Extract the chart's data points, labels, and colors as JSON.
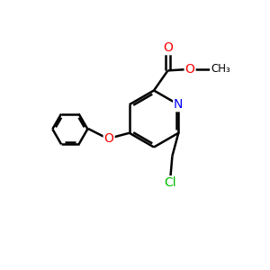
{
  "background_color": "#ffffff",
  "atom_colors": {
    "N": "#0000ff",
    "O": "#ff0000",
    "Cl": "#00bb00"
  },
  "bond_color": "#000000",
  "bond_width": 1.8,
  "figsize": [
    3.0,
    3.0
  ],
  "dpi": 100,
  "xlim": [
    0,
    10
  ],
  "ylim": [
    0,
    10
  ]
}
